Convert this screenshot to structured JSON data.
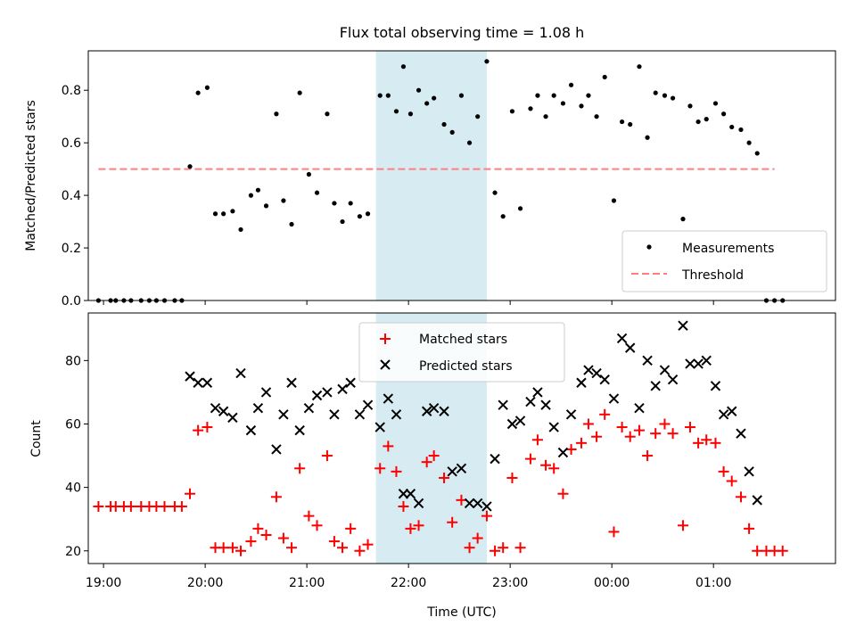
{
  "chart_data": [
    {
      "type": "scatter",
      "title": "Flux total observing time = 1.08 h",
      "xlabel": "",
      "ylabel": "Matched/Predicted stars",
      "xlim": [
        18.85,
        26.2
      ],
      "ylim": [
        0,
        0.95
      ],
      "y_ticks": [
        0.0,
        0.2,
        0.4,
        0.6,
        0.8
      ],
      "y_tick_labels": [
        "0.0",
        "0.2",
        "0.4",
        "0.6",
        "0.8"
      ],
      "grid": false,
      "legend_position": "lower-right",
      "highlight_span": {
        "from": 21.68,
        "to": 22.77,
        "color": "#add8e6"
      },
      "threshold": {
        "name": "Threshold",
        "y": 0.5,
        "x_from": 18.95,
        "x_to": 25.6,
        "color": "#ff7f7f"
      },
      "series": [
        {
          "name": "Measurements",
          "color": "#000000",
          "x": [
            18.95,
            19.07,
            19.12,
            19.2,
            19.27,
            19.37,
            19.45,
            19.52,
            19.6,
            19.7,
            19.77,
            19.85,
            19.93,
            20.02,
            20.1,
            20.18,
            20.27,
            20.35,
            20.45,
            20.52,
            20.6,
            20.7,
            20.77,
            20.85,
            20.93,
            21.02,
            21.1,
            21.2,
            21.27,
            21.35,
            21.43,
            21.52,
            21.6,
            21.72,
            21.8,
            21.88,
            21.95,
            22.02,
            22.1,
            22.18,
            22.25,
            22.35,
            22.43,
            22.52,
            22.6,
            22.68,
            22.77,
            22.85,
            22.93,
            23.02,
            23.1,
            23.2,
            23.27,
            23.35,
            23.43,
            23.52,
            23.6,
            23.7,
            23.77,
            23.85,
            23.93,
            24.02,
            24.1,
            24.18,
            24.27,
            24.35,
            24.43,
            24.52,
            24.6,
            24.7,
            24.77,
            24.85,
            24.93,
            25.02,
            25.1,
            25.18,
            25.27,
            25.35,
            25.43,
            25.52,
            25.6,
            25.68
          ],
          "y": [
            0.0,
            0.0,
            0.0,
            0.0,
            0.0,
            0.0,
            0.0,
            0.0,
            0.0,
            0.0,
            0.0,
            0.51,
            0.79,
            0.81,
            0.33,
            0.33,
            0.34,
            0.27,
            0.4,
            0.42,
            0.36,
            0.71,
            0.38,
            0.29,
            0.79,
            0.48,
            0.41,
            0.71,
            0.37,
            0.3,
            0.37,
            0.32,
            0.33,
            0.78,
            0.78,
            0.72,
            0.89,
            0.71,
            0.8,
            0.75,
            0.77,
            0.67,
            0.64,
            0.78,
            0.6,
            0.7,
            0.91,
            0.41,
            0.32,
            0.72,
            0.35,
            0.73,
            0.78,
            0.7,
            0.78,
            0.75,
            0.82,
            0.74,
            0.78,
            0.7,
            0.85,
            0.38,
            0.68,
            0.67,
            0.89,
            0.62,
            0.79,
            0.78,
            0.77,
            0.31,
            0.74,
            0.68,
            0.69,
            0.75,
            0.71,
            0.66,
            0.65,
            0.6,
            0.56,
            0.0,
            0.0,
            0.0
          ]
        }
      ]
    },
    {
      "type": "scatter",
      "title": "",
      "xlabel": "Time (UTC)",
      "ylabel": "Count",
      "xlim": [
        18.85,
        26.2
      ],
      "ylim": [
        16,
        95
      ],
      "y_ticks": [
        20,
        40,
        60,
        80
      ],
      "y_tick_labels": [
        "20",
        "40",
        "60",
        "80"
      ],
      "x_ticks": [
        19,
        20,
        21,
        22,
        23,
        24,
        25
      ],
      "x_tick_labels": [
        "19:00",
        "20:00",
        "21:00",
        "22:00",
        "23:00",
        "00:00",
        "01:00"
      ],
      "grid": false,
      "legend_position": "upper-center",
      "highlight_span": {
        "from": 21.68,
        "to": 22.77,
        "color": "#add8e6"
      },
      "series": [
        {
          "name": "Matched stars",
          "color": "#ff0000",
          "marker": "plus",
          "x": [
            18.95,
            19.07,
            19.12,
            19.2,
            19.27,
            19.37,
            19.45,
            19.52,
            19.6,
            19.7,
            19.77,
            19.85,
            19.93,
            20.02,
            20.1,
            20.18,
            20.27,
            20.35,
            20.45,
            20.52,
            20.6,
            20.7,
            20.77,
            20.85,
            20.93,
            21.02,
            21.1,
            21.2,
            21.27,
            21.35,
            21.43,
            21.52,
            21.6,
            21.72,
            21.8,
            21.88,
            21.95,
            22.02,
            22.1,
            22.18,
            22.25,
            22.35,
            22.43,
            22.52,
            22.6,
            22.68,
            22.77,
            22.85,
            22.93,
            23.02,
            23.1,
            23.2,
            23.27,
            23.35,
            23.43,
            23.52,
            23.6,
            23.7,
            23.77,
            23.85,
            23.93,
            24.02,
            24.1,
            24.18,
            24.27,
            24.35,
            24.43,
            24.52,
            24.6,
            24.7,
            24.77,
            24.85,
            24.93,
            25.02,
            25.1,
            25.18,
            25.27,
            25.35,
            25.43,
            25.52,
            25.6,
            25.68
          ],
          "y": [
            34,
            34,
            34,
            34,
            34,
            34,
            34,
            34,
            34,
            34,
            34,
            38,
            58,
            59,
            21,
            21,
            21,
            20,
            23,
            27,
            25,
            37,
            24,
            21,
            46,
            31,
            28,
            50,
            23,
            21,
            27,
            20,
            22,
            46,
            53,
            45,
            34,
            27,
            28,
            48,
            50,
            43,
            29,
            36,
            21,
            24,
            31,
            20,
            21,
            43,
            21,
            49,
            55,
            47,
            46,
            38,
            52,
            54,
            60,
            56,
            63,
            26,
            59,
            56,
            58,
            50,
            57,
            60,
            57,
            28,
            59,
            54,
            55,
            54,
            45,
            42,
            37,
            27,
            20,
            20,
            20,
            20
          ]
        },
        {
          "name": "Predicted stars",
          "color": "#000000",
          "marker": "x",
          "x": [
            19.85,
            19.93,
            20.02,
            20.1,
            20.18,
            20.27,
            20.35,
            20.45,
            20.52,
            20.6,
            20.7,
            20.77,
            20.85,
            20.93,
            21.02,
            21.1,
            21.2,
            21.27,
            21.35,
            21.43,
            21.52,
            21.6,
            21.72,
            21.8,
            21.88,
            21.95,
            22.02,
            22.1,
            22.18,
            22.25,
            22.35,
            22.43,
            22.52,
            22.6,
            22.68,
            22.77,
            22.85,
            22.93,
            23.02,
            23.1,
            23.2,
            23.27,
            23.35,
            23.43,
            23.52,
            23.6,
            23.7,
            23.77,
            23.85,
            23.93,
            24.02,
            24.1,
            24.18,
            24.27,
            24.35,
            24.43,
            24.52,
            24.6,
            24.7,
            24.77,
            24.85,
            24.93,
            25.02,
            25.1,
            25.18,
            25.27,
            25.35,
            25.43
          ],
          "y": [
            75,
            73,
            73,
            65,
            64,
            62,
            76,
            58,
            65,
            70,
            52,
            63,
            73,
            58,
            65,
            69,
            70,
            63,
            71,
            73,
            63,
            66,
            59,
            68,
            63,
            38,
            38,
            35,
            64,
            65,
            64,
            45,
            46,
            35,
            35,
            34,
            49,
            66,
            60,
            61,
            67,
            70,
            66,
            59,
            51,
            63,
            73,
            77,
            76,
            74,
            68,
            87,
            84,
            65,
            80,
            72,
            77,
            74,
            91,
            79,
            79,
            80,
            72,
            63,
            64,
            57,
            45,
            36
          ]
        }
      ]
    }
  ]
}
